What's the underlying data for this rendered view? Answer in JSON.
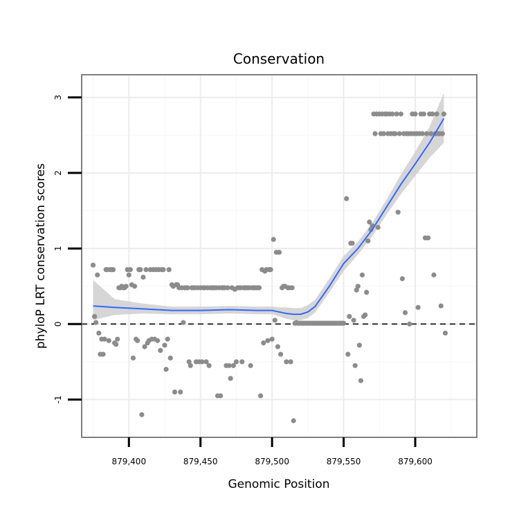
{
  "chart_data": {
    "type": "scatter",
    "title": "Conservation",
    "xlabel": "Genomic Position",
    "ylabel": "phyloP LRT conservation scores",
    "xlim": [
      879367,
      879643
    ],
    "ylim": [
      -1.5,
      3.3
    ],
    "x_ticks": [
      879400,
      879450,
      879500,
      879550,
      879600
    ],
    "x_tick_labels": [
      "879,400",
      "879,450",
      "879,500",
      "879,550",
      "879,600"
    ],
    "y_ticks": [
      -1,
      0,
      1,
      2,
      3
    ],
    "y_tick_labels": [
      "-1",
      "0",
      "1",
      "2",
      "3"
    ],
    "reference_line": {
      "y": 0,
      "style": "dashed",
      "color": "#000000"
    },
    "colors": {
      "points": "#8c8c8c",
      "smooth_line": "#3366ff",
      "confidence_band": "#cccccc",
      "panel_border": "#7f7f7f",
      "grid_major": "#ececec",
      "grid_minor": "#f6f6f6"
    },
    "points": [
      {
        "x": 879375,
        "y": 0.78
      },
      {
        "x": 879376,
        "y": 0.1
      },
      {
        "x": 879377,
        "y": 0.02
      },
      {
        "x": 879378,
        "y": 0.65
      },
      {
        "x": 879379,
        "y": -0.12
      },
      {
        "x": 879380,
        "y": -0.4
      },
      {
        "x": 879381,
        "y": -0.2
      },
      {
        "x": 879382,
        "y": -0.4
      },
      {
        "x": 879383,
        "y": -0.2
      },
      {
        "x": 879384,
        "y": 0.72
      },
      {
        "x": 879385,
        "y": 0.72
      },
      {
        "x": 879386,
        "y": -0.22
      },
      {
        "x": 879387,
        "y": 0.72
      },
      {
        "x": 879388,
        "y": 0.72
      },
      {
        "x": 879389,
        "y": 0.72
      },
      {
        "x": 879390,
        "y": -0.25
      },
      {
        "x": 879391,
        "y": -0.27
      },
      {
        "x": 879392,
        "y": -0.2
      },
      {
        "x": 879393,
        "y": 0.48
      },
      {
        "x": 879394,
        "y": 0.48
      },
      {
        "x": 879395,
        "y": 0.5
      },
      {
        "x": 879396,
        "y": 0.48
      },
      {
        "x": 879397,
        "y": 0.48
      },
      {
        "x": 879398,
        "y": 0.5
      },
      {
        "x": 879399,
        "y": 0.72
      },
      {
        "x": 879400,
        "y": 0.65
      },
      {
        "x": 879401,
        "y": 0.72
      },
      {
        "x": 879402,
        "y": 0.52
      },
      {
        "x": 879403,
        "y": -0.45
      },
      {
        "x": 879404,
        "y": 0.5
      },
      {
        "x": 879405,
        "y": -0.2
      },
      {
        "x": 879406,
        "y": -0.22
      },
      {
        "x": 879407,
        "y": 0.72
      },
      {
        "x": 879408,
        "y": 0.72
      },
      {
        "x": 879409,
        "y": -1.2
      },
      {
        "x": 879410,
        "y": 0.62
      },
      {
        "x": 879411,
        "y": -0.3
      },
      {
        "x": 879412,
        "y": 0.72
      },
      {
        "x": 879413,
        "y": -0.25
      },
      {
        "x": 879414,
        "y": -0.22
      },
      {
        "x": 879415,
        "y": 0.72
      },
      {
        "x": 879416,
        "y": -0.2
      },
      {
        "x": 879417,
        "y": 0.72
      },
      {
        "x": 879418,
        "y": -0.2
      },
      {
        "x": 879419,
        "y": 0.72
      },
      {
        "x": 879420,
        "y": -0.22
      },
      {
        "x": 879421,
        "y": 0.72
      },
      {
        "x": 879422,
        "y": -0.35
      },
      {
        "x": 879423,
        "y": 0.72
      },
      {
        "x": 879424,
        "y": 0.72
      },
      {
        "x": 879425,
        "y": -0.28
      },
      {
        "x": 879426,
        "y": -0.6
      },
      {
        "x": 879427,
        "y": -0.2
      },
      {
        "x": 879428,
        "y": 0.72
      },
      {
        "x": 879429,
        "y": -0.45
      },
      {
        "x": 879430,
        "y": 0.52
      },
      {
        "x": 879431,
        "y": 0.5
      },
      {
        "x": 879432,
        "y": -0.9
      },
      {
        "x": 879433,
        "y": 0.52
      },
      {
        "x": 879434,
        "y": 0.52
      },
      {
        "x": 879435,
        "y": 0.48
      },
      {
        "x": 879436,
        "y": -0.9
      },
      {
        "x": 879437,
        "y": 0.48
      },
      {
        "x": 879438,
        "y": 0.02
      },
      {
        "x": 879439,
        "y": 0.48
      },
      {
        "x": 879440,
        "y": 0.48
      },
      {
        "x": 879441,
        "y": 0.48
      },
      {
        "x": 879442,
        "y": -0.5
      },
      {
        "x": 879443,
        "y": -0.55
      },
      {
        "x": 879444,
        "y": 0.48
      },
      {
        "x": 879445,
        "y": 0.48
      },
      {
        "x": 879446,
        "y": 0.48
      },
      {
        "x": 879447,
        "y": -0.5
      },
      {
        "x": 879448,
        "y": 0.48
      },
      {
        "x": 879449,
        "y": -0.5
      },
      {
        "x": 879450,
        "y": 0.48
      },
      {
        "x": 879451,
        "y": -0.5
      },
      {
        "x": 879452,
        "y": 0.48
      },
      {
        "x": 879453,
        "y": 0.48
      },
      {
        "x": 879454,
        "y": -0.5
      },
      {
        "x": 879455,
        "y": 0.48
      },
      {
        "x": 879456,
        "y": -0.55
      },
      {
        "x": 879457,
        "y": 0.48
      },
      {
        "x": 879458,
        "y": 0.48
      },
      {
        "x": 879459,
        "y": 0.48
      },
      {
        "x": 879460,
        "y": 0.48
      },
      {
        "x": 879461,
        "y": 0.48
      },
      {
        "x": 879462,
        "y": -0.95
      },
      {
        "x": 879463,
        "y": 0.48
      },
      {
        "x": 879464,
        "y": -0.95
      },
      {
        "x": 879465,
        "y": 0.48
      },
      {
        "x": 879466,
        "y": 0.48
      },
      {
        "x": 879467,
        "y": 0.48
      },
      {
        "x": 879468,
        "y": -0.55
      },
      {
        "x": 879469,
        "y": 0.48
      },
      {
        "x": 879470,
        "y": -0.55
      },
      {
        "x": 879471,
        "y": -0.72
      },
      {
        "x": 879472,
        "y": 0.48
      },
      {
        "x": 879473,
        "y": -0.55
      },
      {
        "x": 879474,
        "y": 0.46
      },
      {
        "x": 879475,
        "y": -0.5
      },
      {
        "x": 879476,
        "y": 0.48
      },
      {
        "x": 879477,
        "y": 0.48
      },
      {
        "x": 879478,
        "y": 0.48
      },
      {
        "x": 879479,
        "y": -0.5
      },
      {
        "x": 879480,
        "y": 0.48
      },
      {
        "x": 879481,
        "y": 0.48
      },
      {
        "x": 879482,
        "y": 0.48
      },
      {
        "x": 879483,
        "y": 0.48
      },
      {
        "x": 879484,
        "y": 0.48
      },
      {
        "x": 879485,
        "y": -0.55
      },
      {
        "x": 879486,
        "y": 0.48
      },
      {
        "x": 879487,
        "y": 0.48
      },
      {
        "x": 879488,
        "y": 0.48
      },
      {
        "x": 879489,
        "y": 0.48
      },
      {
        "x": 879490,
        "y": 0.48
      },
      {
        "x": 879491,
        "y": 0.48
      },
      {
        "x": 879492,
        "y": -0.95
      },
      {
        "x": 879493,
        "y": 0.72
      },
      {
        "x": 879494,
        "y": -0.25
      },
      {
        "x": 879495,
        "y": 0.7
      },
      {
        "x": 879496,
        "y": 0.72
      },
      {
        "x": 879497,
        "y": -0.22
      },
      {
        "x": 879498,
        "y": 0.72
      },
      {
        "x": 879499,
        "y": 0.72
      },
      {
        "x": 879500,
        "y": -0.2
      },
      {
        "x": 879501,
        "y": 1.12
      },
      {
        "x": 879502,
        "y": 0.05
      },
      {
        "x": 879503,
        "y": 0.95
      },
      {
        "x": 879504,
        "y": -0.3
      },
      {
        "x": 879505,
        "y": 0.95
      },
      {
        "x": 879506,
        "y": -0.4
      },
      {
        "x": 879507,
        "y": 0.48
      },
      {
        "x": 879508,
        "y": 0.5
      },
      {
        "x": 879509,
        "y": 0.5
      },
      {
        "x": 879510,
        "y": -0.5
      },
      {
        "x": 879511,
        "y": 0.48
      },
      {
        "x": 879512,
        "y": 0.48
      },
      {
        "x": 879513,
        "y": -0.5
      },
      {
        "x": 879514,
        "y": 0.48
      },
      {
        "x": 879515,
        "y": -1.28
      },
      {
        "x": 879516,
        "y": 0.01
      },
      {
        "x": 879517,
        "y": 0.02
      },
      {
        "x": 879518,
        "y": 0.01
      },
      {
        "x": 879519,
        "y": 0.01
      },
      {
        "x": 879520,
        "y": 0.01
      },
      {
        "x": 879521,
        "y": 0.01
      },
      {
        "x": 879522,
        "y": 0.01
      },
      {
        "x": 879523,
        "y": 0.01
      },
      {
        "x": 879524,
        "y": 0.01
      },
      {
        "x": 879525,
        "y": 0.01
      },
      {
        "x": 879526,
        "y": 0.01
      },
      {
        "x": 879527,
        "y": 0.01
      },
      {
        "x": 879528,
        "y": 0.01
      },
      {
        "x": 879529,
        "y": 0.01
      },
      {
        "x": 879530,
        "y": 0.01
      },
      {
        "x": 879531,
        "y": 0.01
      },
      {
        "x": 879532,
        "y": 0.01
      },
      {
        "x": 879533,
        "y": 0.01
      },
      {
        "x": 879534,
        "y": 0.01
      },
      {
        "x": 879535,
        "y": 0.01
      },
      {
        "x": 879536,
        "y": 0.01
      },
      {
        "x": 879537,
        "y": 0.01
      },
      {
        "x": 879538,
        "y": 0.01
      },
      {
        "x": 879539,
        "y": 0.01
      },
      {
        "x": 879540,
        "y": 0.01
      },
      {
        "x": 879541,
        "y": 0.01
      },
      {
        "x": 879542,
        "y": 0.01
      },
      {
        "x": 879543,
        "y": 0.01
      },
      {
        "x": 879544,
        "y": 0.01
      },
      {
        "x": 879545,
        "y": 0.01
      },
      {
        "x": 879546,
        "y": 0.01
      },
      {
        "x": 879547,
        "y": 0.01
      },
      {
        "x": 879548,
        "y": 0.01
      },
      {
        "x": 879549,
        "y": 0.01
      },
      {
        "x": 879550,
        "y": 0.01
      },
      {
        "x": 879552,
        "y": 1.66
      },
      {
        "x": 879553,
        "y": -0.4
      },
      {
        "x": 879554,
        "y": 0.1
      },
      {
        "x": 879555,
        "y": 1.07
      },
      {
        "x": 879556,
        "y": 1.07
      },
      {
        "x": 879557,
        "y": 0.05
      },
      {
        "x": 879558,
        "y": -0.55
      },
      {
        "x": 879559,
        "y": 0.45
      },
      {
        "x": 879560,
        "y": 0.5
      },
      {
        "x": 879561,
        "y": -0.28
      },
      {
        "x": 879562,
        "y": -0.75
      },
      {
        "x": 879563,
        "y": 0.65
      },
      {
        "x": 879564,
        "y": 0.1
      },
      {
        "x": 879565,
        "y": 0.12
      },
      {
        "x": 879566,
        "y": 0.42
      },
      {
        "x": 879567,
        "y": 1.1
      },
      {
        "x": 879568,
        "y": 1.35
      },
      {
        "x": 879569,
        "y": 1.25
      },
      {
        "x": 879570,
        "y": 1.3
      },
      {
        "x": 879571,
        "y": 2.78
      },
      {
        "x": 879572,
        "y": 2.52
      },
      {
        "x": 879573,
        "y": 2.78
      },
      {
        "x": 879574,
        "y": 1.28
      },
      {
        "x": 879575,
        "y": 2.78
      },
      {
        "x": 879576,
        "y": 2.52
      },
      {
        "x": 879577,
        "y": 2.78
      },
      {
        "x": 879578,
        "y": 2.52
      },
      {
        "x": 879579,
        "y": 2.78
      },
      {
        "x": 879580,
        "y": 2.78
      },
      {
        "x": 879581,
        "y": 2.52
      },
      {
        "x": 879582,
        "y": 2.78
      },
      {
        "x": 879583,
        "y": 2.52
      },
      {
        "x": 879584,
        "y": 2.78
      },
      {
        "x": 879585,
        "y": 2.52
      },
      {
        "x": 879586,
        "y": 2.52
      },
      {
        "x": 879587,
        "y": 2.78
      },
      {
        "x": 879588,
        "y": 1.48
      },
      {
        "x": 879589,
        "y": 2.52
      },
      {
        "x": 879590,
        "y": 2.78
      },
      {
        "x": 879591,
        "y": 0.6
      },
      {
        "x": 879592,
        "y": 2.52
      },
      {
        "x": 879593,
        "y": 0.15
      },
      {
        "x": 879594,
        "y": 2.52
      },
      {
        "x": 879595,
        "y": 2.52
      },
      {
        "x": 879596,
        "y": 0.0
      },
      {
        "x": 879597,
        "y": 2.52
      },
      {
        "x": 879598,
        "y": 2.78
      },
      {
        "x": 879599,
        "y": 2.52
      },
      {
        "x": 879600,
        "y": 2.78
      },
      {
        "x": 879601,
        "y": 2.52
      },
      {
        "x": 879602,
        "y": 0.22
      },
      {
        "x": 879603,
        "y": 2.52
      },
      {
        "x": 879604,
        "y": 2.78
      },
      {
        "x": 879605,
        "y": 2.52
      },
      {
        "x": 879606,
        "y": 2.78
      },
      {
        "x": 879607,
        "y": 1.14
      },
      {
        "x": 879608,
        "y": 2.52
      },
      {
        "x": 879609,
        "y": 1.14
      },
      {
        "x": 879610,
        "y": 2.78
      },
      {
        "x": 879611,
        "y": 2.52
      },
      {
        "x": 879612,
        "y": 2.78
      },
      {
        "x": 879613,
        "y": 0.65
      },
      {
        "x": 879614,
        "y": 2.52
      },
      {
        "x": 879615,
        "y": 2.78
      },
      {
        "x": 879616,
        "y": 2.52
      },
      {
        "x": 879617,
        "y": 2.52
      },
      {
        "x": 879618,
        "y": 0.24
      },
      {
        "x": 879619,
        "y": 2.52
      },
      {
        "x": 879620,
        "y": 2.78
      },
      {
        "x": 879621,
        "y": -0.12
      }
    ],
    "smooth": {
      "x": [
        879375,
        879390,
        879410,
        879430,
        879450,
        879470,
        879490,
        879500,
        879505,
        879510,
        879515,
        879520,
        879525,
        879530,
        879540,
        879550,
        879560,
        879570,
        879580,
        879590,
        879600,
        879610,
        879620
      ],
      "y": [
        0.24,
        0.22,
        0.2,
        0.18,
        0.18,
        0.19,
        0.18,
        0.18,
        0.16,
        0.14,
        0.13,
        0.13,
        0.16,
        0.23,
        0.5,
        0.8,
        1.0,
        1.25,
        1.55,
        1.85,
        2.12,
        2.4,
        2.72
      ],
      "lo": [
        0.05,
        0.12,
        0.14,
        0.13,
        0.13,
        0.14,
        0.13,
        0.13,
        0.1,
        0.07,
        0.05,
        0.05,
        0.08,
        0.15,
        0.42,
        0.7,
        0.92,
        1.16,
        1.45,
        1.72,
        1.96,
        2.2,
        2.4
      ],
      "hi": [
        0.58,
        0.33,
        0.27,
        0.23,
        0.23,
        0.24,
        0.23,
        0.23,
        0.22,
        0.22,
        0.21,
        0.21,
        0.25,
        0.32,
        0.6,
        0.9,
        1.09,
        1.34,
        1.65,
        1.98,
        2.28,
        2.61,
        3.06
      ]
    }
  }
}
